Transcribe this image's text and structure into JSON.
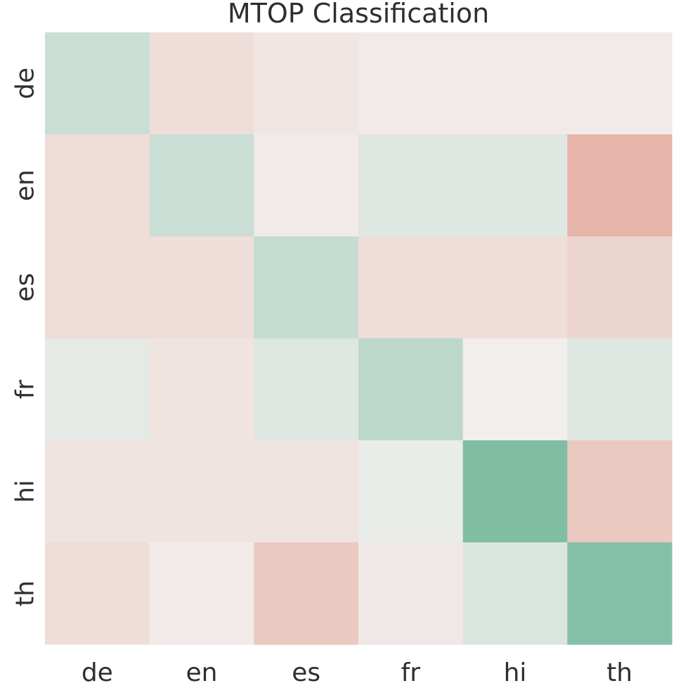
{
  "chart_data": {
    "type": "heatmap",
    "title": "MTOP Classification",
    "xlabel": "",
    "ylabel": "",
    "x_categories": [
      "de",
      "en",
      "es",
      "fr",
      "hi",
      "th"
    ],
    "y_categories": [
      "de",
      "en",
      "es",
      "fr",
      "hi",
      "th"
    ],
    "values": [
      [
        0.3,
        -0.2,
        -0.1,
        -0.06,
        -0.06,
        -0.06
      ],
      [
        -0.2,
        0.3,
        -0.06,
        0.15,
        0.15,
        -0.62
      ],
      [
        -0.2,
        -0.2,
        0.34,
        -0.2,
        -0.2,
        -0.28
      ],
      [
        0.1,
        -0.12,
        0.15,
        0.4,
        -0.02,
        0.15
      ],
      [
        -0.12,
        -0.12,
        -0.12,
        0.06,
        0.85,
        -0.4
      ],
      [
        -0.2,
        -0.06,
        -0.4,
        -0.08,
        0.18,
        0.82
      ]
    ],
    "vmin": -1,
    "vmax": 1,
    "colormap": {
      "negative": "#de8f7d",
      "neutral": "#f2f0ef",
      "positive": "#6cb597"
    },
    "colorbar": false,
    "grid": false
  }
}
